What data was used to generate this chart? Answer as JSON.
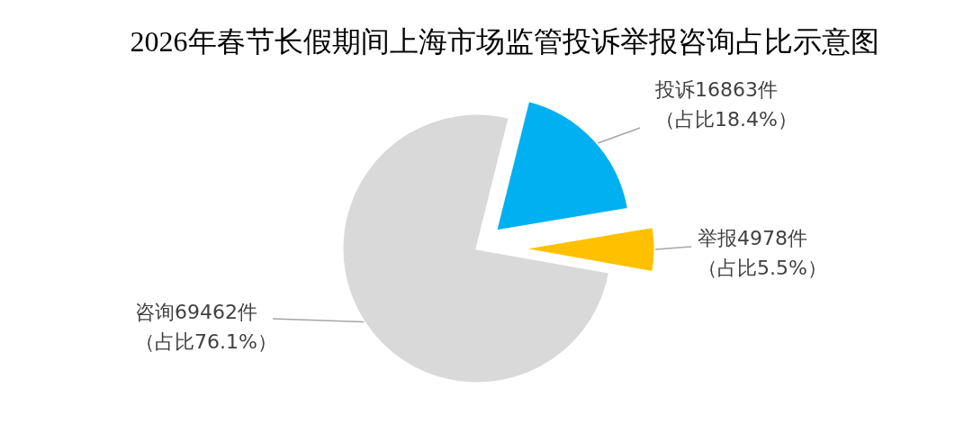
{
  "chart_data": {
    "type": "pie",
    "title": "2026年春节长假期间上海市场监管投诉举报咨询占比示意图",
    "categories": [
      "投诉",
      "举报",
      "咨询"
    ],
    "values": [
      16863,
      4978,
      69462
    ],
    "colors": [
      "#00b0f0",
      "#ffc000",
      "#d9d9d9"
    ],
    "value_labels": [
      "16863件",
      "4978件",
      "69462件"
    ],
    "annotations": [
      "（占比18.4%）",
      "（占比5.5%）",
      "（占比76.1%）"
    ]
  }
}
